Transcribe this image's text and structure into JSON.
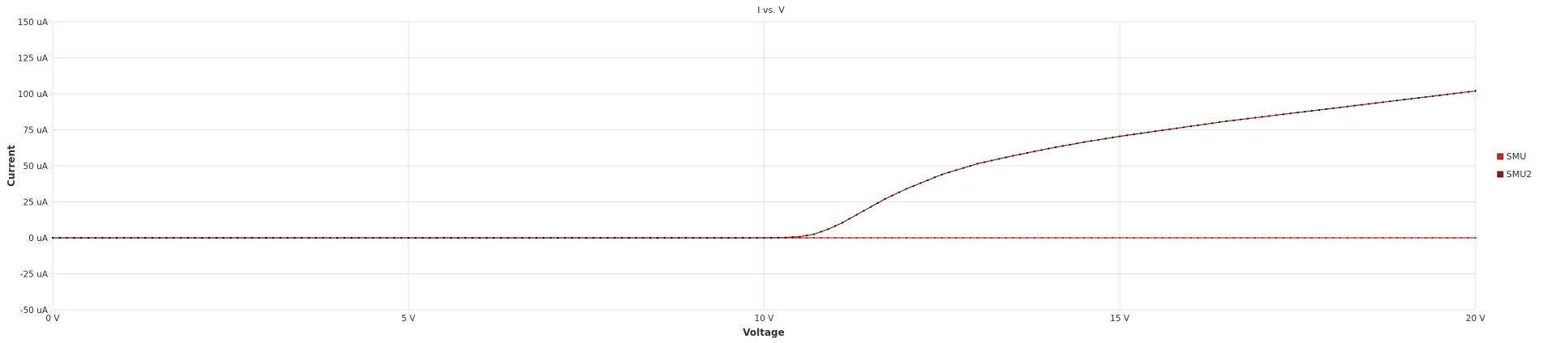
{
  "chart_data": {
    "type": "line",
    "title": "I vs. V",
    "xlabel": "Voltage",
    "ylabel": "Current",
    "xlim": [
      0,
      20
    ],
    "ylim": [
      -50,
      150
    ],
    "x_ticks": [
      {
        "value": 0,
        "label": "0 V"
      },
      {
        "value": 5,
        "label": "5 V"
      },
      {
        "value": 10,
        "label": "10 V"
      },
      {
        "value": 15,
        "label": "15 V"
      },
      {
        "value": 20,
        "label": "20 V"
      }
    ],
    "y_ticks": [
      {
        "value": 150,
        "label": "150 uA"
      },
      {
        "value": 125,
        "label": "125 uA"
      },
      {
        "value": 100,
        "label": "100 uA"
      },
      {
        "value": 75,
        "label": "75 uA"
      },
      {
        "value": 50,
        "label": "50 uA"
      },
      {
        "value": 25,
        "label": "25 uA"
      },
      {
        "value": 0,
        "label": "0 uA"
      },
      {
        "value": -25,
        "label": "-25 uA"
      },
      {
        "value": -50,
        "label": "-50 uA"
      }
    ],
    "grid": true,
    "legend_position": "right",
    "series": [
      {
        "name": "SMU",
        "color": "#e02020",
        "marker_color": "#e02020",
        "x": [
          0,
          20
        ],
        "y": [
          0,
          0
        ],
        "step": 0.1
      },
      {
        "name": "SMU2",
        "color": "#8b1a1a",
        "marker_color": "#1a0000",
        "x": [
          0,
          1,
          2,
          3,
          4,
          5,
          6,
          7,
          8,
          9,
          10,
          10.3,
          10.5,
          10.7,
          10.9,
          11.1,
          11.3,
          11.5,
          11.7,
          12,
          12.5,
          13,
          13.5,
          14,
          14.5,
          15,
          15.5,
          16,
          16.5,
          17,
          17.5,
          18,
          18.5,
          19,
          19.5,
          20
        ],
        "y": [
          0,
          0,
          0,
          0,
          0,
          0,
          0,
          0,
          0,
          0,
          0,
          0.2,
          0.8,
          2.5,
          6,
          10.5,
          16,
          21.5,
          27,
          34,
          44,
          51.5,
          57,
          62,
          66.5,
          70.5,
          74,
          77.5,
          81,
          84,
          87,
          90,
          93,
          96,
          99,
          102
        ]
      }
    ]
  }
}
